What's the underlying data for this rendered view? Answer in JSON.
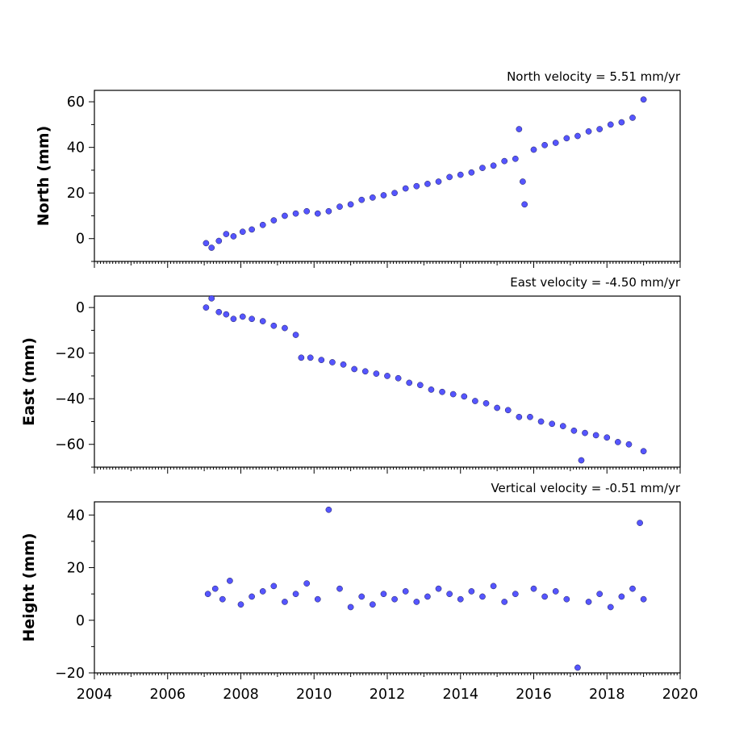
{
  "chart_data": [
    {
      "type": "scatter",
      "title": "North velocity = 5.51 mm/yr",
      "ylabel": "North (mm)",
      "xlim": [
        2004,
        2020
      ],
      "ylim": [
        -10,
        65
      ],
      "yticks": [
        0,
        20,
        40,
        60
      ],
      "x_tick_labels_shown": false,
      "series": [
        {
          "points": [
            [
              2007.05,
              -2
            ],
            [
              2007.2,
              -4
            ],
            [
              2007.4,
              -1
            ],
            [
              2007.6,
              2
            ],
            [
              2007.8,
              1
            ],
            [
              2008.05,
              3
            ],
            [
              2008.3,
              4
            ],
            [
              2008.6,
              6
            ],
            [
              2008.9,
              8
            ],
            [
              2009.2,
              10
            ],
            [
              2009.5,
              11
            ],
            [
              2009.8,
              12
            ],
            [
              2010.1,
              11
            ],
            [
              2010.4,
              12
            ],
            [
              2010.7,
              14
            ],
            [
              2011.0,
              15
            ],
            [
              2011.3,
              17
            ],
            [
              2011.6,
              18
            ],
            [
              2011.9,
              19
            ],
            [
              2012.2,
              20
            ],
            [
              2012.5,
              22
            ],
            [
              2012.8,
              23
            ],
            [
              2013.1,
              24
            ],
            [
              2013.4,
              25
            ],
            [
              2013.7,
              27
            ],
            [
              2014.0,
              28
            ],
            [
              2014.3,
              29
            ],
            [
              2014.6,
              31
            ],
            [
              2014.9,
              32
            ],
            [
              2015.2,
              34
            ],
            [
              2015.5,
              35
            ],
            [
              2015.6,
              48
            ],
            [
              2015.7,
              25
            ],
            [
              2015.75,
              15
            ],
            [
              2016.0,
              39
            ],
            [
              2016.3,
              41
            ],
            [
              2016.6,
              42
            ],
            [
              2016.9,
              44
            ],
            [
              2017.2,
              45
            ],
            [
              2017.5,
              47
            ],
            [
              2017.8,
              48
            ],
            [
              2018.1,
              50
            ],
            [
              2018.4,
              51
            ],
            [
              2018.7,
              53
            ],
            [
              2019.0,
              61
            ]
          ]
        }
      ]
    },
    {
      "type": "scatter",
      "title": "East velocity = -4.50 mm/yr",
      "ylabel": "East (mm)",
      "xlim": [
        2004,
        2020
      ],
      "ylim": [
        -70,
        5
      ],
      "yticks": [
        -60,
        -40,
        -20,
        0
      ],
      "x_tick_labels_shown": false,
      "series": [
        {
          "points": [
            [
              2007.05,
              0
            ],
            [
              2007.2,
              4
            ],
            [
              2007.4,
              -2
            ],
            [
              2007.6,
              -3
            ],
            [
              2007.8,
              -5
            ],
            [
              2008.05,
              -4
            ],
            [
              2008.3,
              -5
            ],
            [
              2008.6,
              -6
            ],
            [
              2008.9,
              -8
            ],
            [
              2009.2,
              -9
            ],
            [
              2009.5,
              -12
            ],
            [
              2009.65,
              -22
            ],
            [
              2009.9,
              -22
            ],
            [
              2010.2,
              -23
            ],
            [
              2010.5,
              -24
            ],
            [
              2010.8,
              -25
            ],
            [
              2011.1,
              -27
            ],
            [
              2011.4,
              -28
            ],
            [
              2011.7,
              -29
            ],
            [
              2012.0,
              -30
            ],
            [
              2012.3,
              -31
            ],
            [
              2012.6,
              -33
            ],
            [
              2012.9,
              -34
            ],
            [
              2013.2,
              -36
            ],
            [
              2013.5,
              -37
            ],
            [
              2013.8,
              -38
            ],
            [
              2014.1,
              -39
            ],
            [
              2014.4,
              -41
            ],
            [
              2014.7,
              -42
            ],
            [
              2015.0,
              -44
            ],
            [
              2015.3,
              -45
            ],
            [
              2015.6,
              -48
            ],
            [
              2015.9,
              -48
            ],
            [
              2016.2,
              -50
            ],
            [
              2016.5,
              -51
            ],
            [
              2016.8,
              -52
            ],
            [
              2017.1,
              -54
            ],
            [
              2017.4,
              -55
            ],
            [
              2017.7,
              -56
            ],
            [
              2018.0,
              -57
            ],
            [
              2018.3,
              -59
            ],
            [
              2018.6,
              -60
            ],
            [
              2019.0,
              -63
            ],
            [
              2017.3,
              -67
            ]
          ]
        }
      ]
    },
    {
      "type": "scatter",
      "title": "Vertical velocity = -0.51 mm/yr",
      "ylabel": "Height (mm)",
      "xlim": [
        2004,
        2020
      ],
      "ylim": [
        -20,
        45
      ],
      "yticks": [
        -20,
        0,
        20,
        40
      ],
      "xticks": [
        2004,
        2006,
        2008,
        2010,
        2012,
        2014,
        2016,
        2018,
        2020
      ],
      "x_tick_labels_shown": true,
      "series": [
        {
          "points": [
            [
              2007.1,
              10
            ],
            [
              2007.3,
              12
            ],
            [
              2007.5,
              8
            ],
            [
              2007.7,
              15
            ],
            [
              2008.0,
              6
            ],
            [
              2008.3,
              9
            ],
            [
              2008.6,
              11
            ],
            [
              2008.9,
              13
            ],
            [
              2009.2,
              7
            ],
            [
              2009.5,
              10
            ],
            [
              2009.8,
              14
            ],
            [
              2010.1,
              8
            ],
            [
              2010.4,
              42
            ],
            [
              2010.7,
              12
            ],
            [
              2011.0,
              5
            ],
            [
              2011.3,
              9
            ],
            [
              2011.6,
              6
            ],
            [
              2011.9,
              10
            ],
            [
              2012.2,
              8
            ],
            [
              2012.5,
              11
            ],
            [
              2012.8,
              7
            ],
            [
              2013.1,
              9
            ],
            [
              2013.4,
              12
            ],
            [
              2013.7,
              10
            ],
            [
              2014.0,
              8
            ],
            [
              2014.3,
              11
            ],
            [
              2014.6,
              9
            ],
            [
              2014.9,
              13
            ],
            [
              2015.2,
              7
            ],
            [
              2015.5,
              10
            ],
            [
              2016.0,
              12
            ],
            [
              2016.3,
              9
            ],
            [
              2016.6,
              11
            ],
            [
              2016.9,
              8
            ],
            [
              2017.2,
              -18
            ],
            [
              2017.5,
              7
            ],
            [
              2017.8,
              10
            ],
            [
              2018.1,
              5
            ],
            [
              2018.4,
              9
            ],
            [
              2018.7,
              12
            ],
            [
              2018.9,
              37
            ],
            [
              2019.0,
              8
            ]
          ]
        }
      ]
    }
  ]
}
